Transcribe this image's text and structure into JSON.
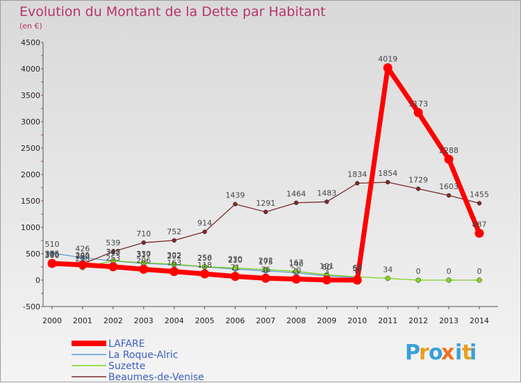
{
  "chart_data": {
    "type": "line",
    "title": "Evolution du Montant de la Dette par Habitant",
    "subtitle": "(en €)",
    "x": [
      "2000",
      "2001",
      "2002",
      "2003",
      "2004",
      "2005",
      "2006",
      "2007",
      "2008",
      "2009",
      "2010",
      "2011",
      "2012",
      "2013",
      "2014"
    ],
    "ylim": [
      -500,
      4500
    ],
    "yticks": [
      -500,
      0,
      500,
      1000,
      1500,
      2000,
      2500,
      3000,
      3500,
      4000,
      4500
    ],
    "grid": false,
    "legend_position": "bottom-left",
    "series": [
      {
        "name": "LAFARE",
        "color": "#ff0000",
        "values": [
          316,
          290,
          253,
          206,
          163,
          118,
          71,
          36,
          20,
          3,
          0,
          4019,
          3173,
          2288,
          887
        ],
        "labels": [
          "316",
          "290",
          "253",
          "206",
          "163",
          "118",
          "71",
          "36",
          "20",
          "3",
          "0",
          "4019",
          "3173",
          "2288",
          "887"
        ]
      },
      {
        "name": "La Roque-Alric",
        "color": "#5b9bd5",
        "values": [
          510,
          426,
          362,
          317,
          292,
          250,
          210,
          175,
          140,
          80,
          50,
          null,
          null,
          null,
          null
        ],
        "labels": [
          "510",
          "426",
          "362",
          "317",
          "292",
          "250",
          "210",
          "175",
          "140",
          "80",
          "50",
          "",
          "",
          "",
          ""
        ]
      },
      {
        "name": "Suzette",
        "color": "#7ed321",
        "values": [
          335,
          238,
          368,
          330,
          302,
          256,
          230,
          202,
          167,
          101,
          63,
          34,
          0,
          0,
          0
        ],
        "labels": [
          "335",
          "238",
          "368",
          "330",
          "302",
          "256",
          "230",
          "202",
          "167",
          "101",
          "63",
          "34",
          "0",
          "0",
          "0"
        ]
      },
      {
        "name": "Beaumes-de-Venise",
        "color": "#7a2a2a",
        "values": [
          300,
          305,
          539,
          710,
          752,
          914,
          1439,
          1291,
          1464,
          1483,
          1834,
          1854,
          1729,
          1603,
          1455
        ],
        "labels": [
          "300",
          "305",
          "539",
          "710",
          "752",
          "914",
          "1439",
          "1291",
          "1464",
          "1483",
          "1834",
          "1854",
          "1729",
          "1603",
          "1455"
        ]
      }
    ]
  },
  "logo": {
    "text": "Proxiti",
    "letters": [
      "P",
      "r",
      "o",
      "x",
      "i",
      "t",
      "i"
    ],
    "colors": [
      "#3aa0d8",
      "#e8a020",
      "#3aa0d8",
      "#f07020",
      "#3aa0d8",
      "#e8a020",
      "#3aa0d8"
    ]
  }
}
